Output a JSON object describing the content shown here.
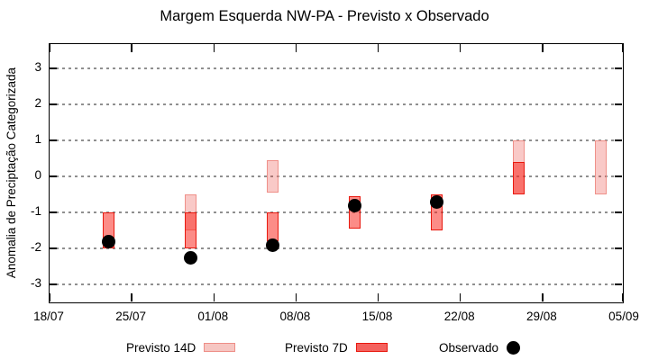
{
  "title": "Margem Esquerda NW-PA - Previsto x Observado",
  "chart_data": {
    "type": "bar",
    "subtype": "ranged-forecast-bars-with-observed-scatter",
    "title": "Margem Esquerda NW-PA - Previsto x Observado",
    "xlabel": "",
    "ylabel": "Anomalia de Preciptação Categorizada",
    "x_ticks": [
      "18/07",
      "25/07",
      "01/08",
      "08/08",
      "15/08",
      "22/08",
      "29/08",
      "05/09"
    ],
    "y_ticks": [
      3,
      2,
      1,
      0,
      -1,
      -2,
      -3
    ],
    "ylim": [
      -3.55,
      3.68
    ],
    "x_days_total": 49,
    "grid": "horizontal-dashed",
    "legend_position": "bottom-center",
    "series": [
      {
        "date": "23/07",
        "day": 5,
        "previsto_14d": null,
        "previsto_7d": [
          -2.0,
          -1.0
        ],
        "observado": -1.8
      },
      {
        "date": "30/07",
        "day": 12,
        "previsto_14d": [
          -1.5,
          -0.5
        ],
        "previsto_7d": [
          -2.0,
          -1.0
        ],
        "observado": -2.25
      },
      {
        "date": "06/08",
        "day": 19,
        "previsto_14d": [
          -0.45,
          0.45
        ],
        "previsto_7d": [
          -1.8,
          -1.0
        ],
        "observado": -1.9
      },
      {
        "date": "13/08",
        "day": 26,
        "previsto_14d": null,
        "previsto_7d": [
          -1.45,
          -0.55
        ],
        "observado": -0.8
      },
      {
        "date": "20/08",
        "day": 33,
        "previsto_14d": null,
        "previsto_7d": [
          -1.5,
          -0.5
        ],
        "observado": -0.7
      },
      {
        "date": "27/08",
        "day": 40,
        "previsto_14d": [
          -0.5,
          1.0
        ],
        "previsto_7d": [
          -0.5,
          0.4
        ],
        "observado": null
      },
      {
        "date": "03/09",
        "day": 47,
        "previsto_14d": [
          -0.5,
          1.0
        ],
        "previsto_7d": null,
        "observado": null
      }
    ],
    "legend": [
      {
        "label": "Previsto 14D",
        "swatch_fill": "#f6c6c2",
        "swatch_border": "#ee8e87"
      },
      {
        "label": "Previsto 7D",
        "swatch_fill": "#f4625e",
        "swatch_border": "#e8190f"
      },
      {
        "label": "Observado",
        "swatch_fill": "#000000",
        "swatch_border": "#000000"
      }
    ],
    "colors": {
      "previsto_14d_fill": "rgba(231,57,48,0.27)",
      "previsto_14d_border": "#ef9089",
      "previsto_7d_fill": "rgba(250,35,25,0.52)",
      "previsto_7d_border": "#e8190f",
      "observado": "#000000",
      "grid": "#8f8f8f",
      "axis": "#000000"
    }
  }
}
